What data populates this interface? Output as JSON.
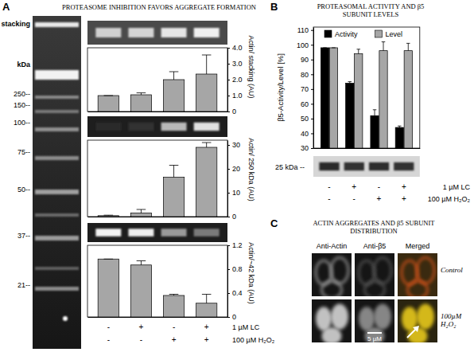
{
  "chart_data": [
    {
      "type": "bar",
      "y_label": "Actin/ stacking (AU)",
      "categories": [
        null,
        null,
        null,
        null
      ],
      "values": [
        1.0,
        1.05,
        2.0,
        2.35
      ],
      "errors": [
        0,
        0.12,
        0.5,
        1.2
      ],
      "color": "#a6a6a6",
      "ylim": [
        0,
        4
      ],
      "yticks": [
        0,
        {
          "value": 1,
          "label": "1.0"
        },
        {
          "value": 2,
          "label": "2.0"
        },
        {
          "value": 3,
          "label": "3.0"
        },
        {
          "value": 4,
          "label": "4.0"
        }
      ]
    },
    {
      "type": "bar",
      "y_label": "Actin/ 250 kDa (AU)",
      "categories": [
        null,
        null,
        null,
        null
      ],
      "values": [
        0.4,
        1.5,
        16.5,
        29
      ],
      "errors": [
        0.2,
        1.5,
        5.0,
        2.0
      ],
      "color": "#a6a6a6",
      "ylim": [
        0,
        32
      ],
      "yticks": [
        0,
        10,
        20,
        30
      ]
    },
    {
      "type": "bar",
      "y_label": "Actin/~42 kDa (AU)",
      "categories": [
        null,
        null,
        null,
        null
      ],
      "values": [
        0.97,
        0.87,
        0.36,
        0.23
      ],
      "errors": [
        0,
        0.07,
        0.02,
        0.15
      ],
      "color": "#a6a6a6",
      "ylim": [
        0,
        1.2
      ],
      "yticks": [
        0,
        0.4,
        0.8,
        1.2
      ]
    },
    {
      "type": "bar",
      "title": "PROTEASOMAL ACTIVITY AND β5 SUBUNIT LEVELS",
      "y_label": "β5-Activity/Level [%]",
      "categories": [
        null,
        null,
        null,
        null
      ],
      "series": [
        {
          "name": "Activity",
          "color": "#000000",
          "values": [
            98,
            74,
            52,
            44
          ],
          "errors": [
            0,
            1,
            4,
            1
          ]
        },
        {
          "name": "Level",
          "color": "#a6a6a6",
          "values": [
            98,
            94,
            96,
            96
          ],
          "errors": [
            0,
            3,
            6,
            5
          ]
        }
      ],
      "ylim": [
        30,
        112
      ],
      "yticks": [
        30,
        40,
        50,
        60,
        70,
        80,
        90,
        100,
        110
      ],
      "legend": "top"
    }
  ],
  "panels": {
    "A": {
      "letter": "A",
      "title": "PROTEASOME INHIBITION FAVORS AGGREGATE FORMATION",
      "gel_labels": [
        "stacking",
        "kDa",
        "250--",
        "150--",
        "100--",
        "75--",
        "50--",
        "37--",
        "21--"
      ],
      "treatments": [
        {
          "label": "1 µM LC",
          "values": [
            "-",
            "+",
            "-",
            "+"
          ]
        },
        {
          "label": "100 µM H₂O₂",
          "values": [
            "-",
            "-",
            "+",
            "+"
          ]
        }
      ]
    },
    "B": {
      "letter": "B",
      "blot_label": "25 kDa --",
      "treatments": [
        {
          "label": "1 µM LC",
          "values": [
            "-",
            "+",
            "-",
            "+"
          ]
        },
        {
          "label": "100 µM H₂O₂",
          "values": [
            "-",
            "-",
            "+",
            "+"
          ]
        }
      ]
    },
    "C": {
      "letter": "C",
      "title": "ACTIN AGGREGATES AND β5 SUBUNIT DISTRIBUTION",
      "columns": [
        "Anti-Actin",
        "Anti-β5",
        "Merged"
      ],
      "rows": [
        "Control",
        "100µM H₂O₂"
      ],
      "scale_bar": "5 µM"
    }
  }
}
